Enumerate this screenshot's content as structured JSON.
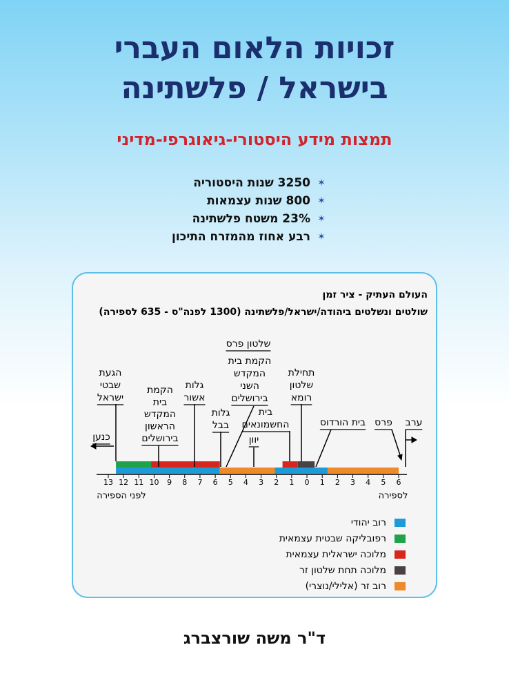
{
  "header": {
    "title_lines": [
      "זכויות הלאום העברי",
      "בישראל / פלשתינה"
    ],
    "subtitle": "תמצות מידע היסטורי-גיאוגרפי-מדיני",
    "bullets": [
      "3250 שנות היסטוריה",
      "800 שנות עצמאות",
      "23% משטח פלשתינה",
      "רבע אחוז מהמזרח התיכון"
    ]
  },
  "timeline": {
    "title": "העולם העתיק - ציר זמן",
    "subtitle": "שולטים ונשלטים ביהודה/ישראל/פלשתינה (1300 לפנה\"ס - 635 לספירה)",
    "xlim": [
      -13,
      6
    ],
    "xticks": [
      {
        "value": -13,
        "label": "13"
      },
      {
        "value": -12,
        "label": "12"
      },
      {
        "value": -11,
        "label": "11"
      },
      {
        "value": -10,
        "label": "10"
      },
      {
        "value": -9,
        "label": "9"
      },
      {
        "value": -8,
        "label": "8"
      },
      {
        "value": -7,
        "label": "7"
      },
      {
        "value": -6,
        "label": "6"
      },
      {
        "value": -5,
        "label": "5"
      },
      {
        "value": -4,
        "label": "4"
      },
      {
        "value": -3,
        "label": "3"
      },
      {
        "value": -2,
        "label": "2"
      },
      {
        "value": -1,
        "label": "1"
      },
      0,
      1,
      2,
      3,
      4,
      5,
      6
    ],
    "axis_left_caption": "לפני הספירה",
    "axis_right_caption": "לספירה",
    "upper_segments": [
      {
        "from": -12.5,
        "to": -10.2,
        "color": "#1fa24a"
      },
      {
        "from": -10.2,
        "to": -5.7,
        "color": "#d7261e"
      },
      {
        "from": -1.6,
        "to": -0.6,
        "color": "#d7261e"
      },
      {
        "from": -0.6,
        "to": 0.5,
        "color": "#4a4145"
      }
    ],
    "lower_segments": [
      {
        "from": -12.5,
        "to": -5.7,
        "color": "#1e9ad6"
      },
      {
        "from": -5.7,
        "to": -2.1,
        "color": "#ee8a2a"
      },
      {
        "from": -2.1,
        "to": 1.35,
        "color": "#1e9ad6"
      },
      {
        "from": 1.35,
        "to": 6,
        "color": "#ee8a2a"
      }
    ],
    "annotations": [
      {
        "lines": [
          "הגעת",
          "שבטי",
          "ישראל"
        ]
      },
      {
        "lines": [
          "כנען"
        ]
      },
      {
        "lines": [
          "הקמת",
          "בית",
          "המקדש",
          "הראשון",
          "בירושלים"
        ]
      },
      {
        "lines": [
          "גלות",
          "אשור"
        ]
      },
      {
        "lines": [
          "גלות",
          "בבל"
        ]
      },
      {
        "lines": [
          "שלטון פרס"
        ]
      },
      {
        "lines": [
          "הקמת בית",
          "המקדש",
          "השני",
          "בירושלים"
        ]
      },
      {
        "lines": [
          "בית",
          "החשמונאים"
        ]
      },
      {
        "lines": [
          "יוון"
        ]
      },
      {
        "lines": [
          "תחילת",
          "שלטון",
          "רומא"
        ]
      },
      {
        "lines": [
          "בית הורדוס"
        ]
      },
      {
        "lines": [
          "פרס"
        ]
      },
      {
        "lines": [
          "ערב"
        ]
      }
    ],
    "legend": [
      {
        "label": "רוב יהודי",
        "color": "#1e9ad6"
      },
      {
        "label": "רפובליקה שבטית עצמאית",
        "color": "#1fa24a"
      },
      {
        "label": "מלוכה ישראלית עצמאית",
        "color": "#d7261e"
      },
      {
        "label": "מלוכה תחת שלטון זר",
        "color": "#4a4145"
      },
      {
        "label": "רוב זר (אלילי/נוצרי)",
        "color": "#ee8a2a"
      }
    ]
  },
  "footer": {
    "author": "ד\"ר משה שורצברג"
  }
}
